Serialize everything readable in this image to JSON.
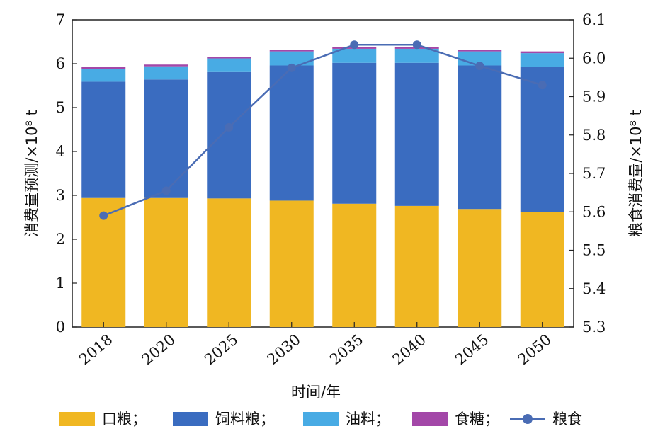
{
  "chart_data": {
    "type": "bar",
    "stacked": true,
    "categories": [
      "2018",
      "2020",
      "2025",
      "2030",
      "2035",
      "2040",
      "2045",
      "2050"
    ],
    "xlabel": "时间/年",
    "ylabel_left": "消费量预测/×10⁸ t",
    "ylabel_right": "粮食消费量/×10⁸ t",
    "ylim_left": [
      0,
      7
    ],
    "ylim_right": [
      5.3,
      6.1
    ],
    "yticks_left": [
      "0",
      "1",
      "2",
      "3",
      "4",
      "5",
      "6",
      "7"
    ],
    "yticks_right": [
      "5.3",
      "5.4",
      "5.5",
      "5.6",
      "5.7",
      "5.8",
      "5.9",
      "6.0",
      "6.1"
    ],
    "grid": false,
    "legend_position": "bottom",
    "series": [
      {
        "name": "口粮；",
        "axis": "left",
        "color": "#F0B722",
        "values": [
          2.94,
          2.94,
          2.93,
          2.88,
          2.81,
          2.76,
          2.69,
          2.62
        ]
      },
      {
        "name": "饲料粮；",
        "axis": "left",
        "color": "#3A6CC0",
        "values": [
          2.65,
          2.7,
          2.88,
          3.08,
          3.21,
          3.26,
          3.27,
          3.3
        ]
      },
      {
        "name": "油料；",
        "axis": "left",
        "color": "#48ABE4",
        "values": [
          0.29,
          0.3,
          0.31,
          0.32,
          0.32,
          0.32,
          0.32,
          0.32
        ]
      },
      {
        "name": "食糖；",
        "axis": "left",
        "color": "#A347A8",
        "values": [
          0.04,
          0.04,
          0.04,
          0.04,
          0.04,
          0.04,
          0.04,
          0.04
        ]
      },
      {
        "name": "粮食",
        "axis": "right",
        "type": "line",
        "color": "#4A6CB4",
        "values": [
          5.59,
          5.655,
          5.82,
          5.975,
          6.035,
          6.035,
          5.98,
          5.93
        ]
      }
    ]
  }
}
